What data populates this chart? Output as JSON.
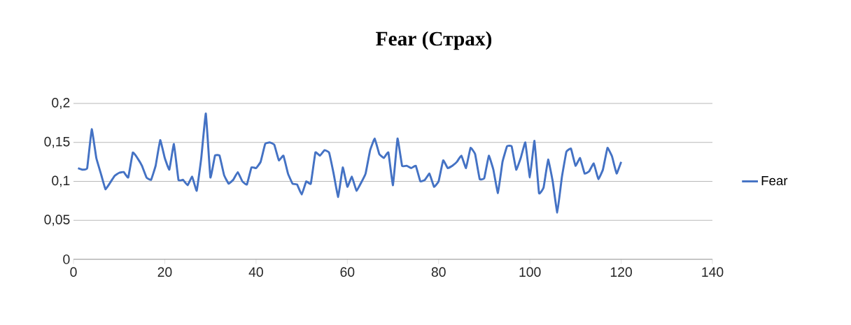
{
  "chart_data": {
    "type": "line",
    "title": "**Fear (Страх)**",
    "x": [
      1,
      2,
      3,
      4,
      5,
      6,
      7,
      8,
      9,
      10,
      11,
      12,
      13,
      14,
      15,
      16,
      17,
      18,
      19,
      20,
      21,
      22,
      23,
      24,
      25,
      26,
      27,
      28,
      29,
      30,
      31,
      32,
      33,
      34,
      35,
      36,
      37,
      38,
      39,
      40,
      41,
      42,
      43,
      44,
      45,
      46,
      47,
      48,
      49,
      50,
      51,
      52,
      53,
      54,
      55,
      56,
      57,
      58,
      59,
      60,
      61,
      62,
      63,
      64,
      65,
      66,
      67,
      68,
      69,
      70,
      71,
      72,
      73,
      74,
      75,
      76,
      77,
      78,
      79,
      80,
      81,
      82,
      83,
      84,
      85,
      86,
      87,
      88,
      89,
      90,
      91,
      92,
      93,
      94,
      95,
      96,
      97,
      98,
      99,
      100,
      101,
      102,
      103,
      104,
      105,
      106,
      107,
      108,
      109,
      110,
      111,
      112,
      113,
      114,
      115,
      116,
      117,
      118,
      119,
      120
    ],
    "series": [
      {
        "name": "Fear",
        "color": "#4472c4",
        "values": [
          0.117,
          0.115,
          0.117,
          0.167,
          0.13,
          0.11,
          0.09,
          0.098,
          0.107,
          0.111,
          0.112,
          0.105,
          0.137,
          0.13,
          0.12,
          0.105,
          0.102,
          0.12,
          0.153,
          0.13,
          0.115,
          0.148,
          0.102,
          0.102,
          0.095,
          0.106,
          0.088,
          0.13,
          0.187,
          0.105,
          0.133,
          0.133,
          0.108,
          0.097,
          0.102,
          0.112,
          0.1,
          0.096,
          0.118,
          0.117,
          0.125,
          0.148,
          0.15,
          0.147,
          0.127,
          0.133,
          0.11,
          0.097,
          0.096,
          0.083,
          0.1,
          0.097,
          0.137,
          0.133,
          0.14,
          0.137,
          0.11,
          0.08,
          0.118,
          0.093,
          0.106,
          0.088,
          0.098,
          0.11,
          0.14,
          0.155,
          0.135,
          0.13,
          0.137,
          0.095,
          0.155,
          0.12,
          0.12,
          0.117,
          0.12,
          0.1,
          0.102,
          0.11,
          0.093,
          0.1,
          0.127,
          0.117,
          0.12,
          0.125,
          0.133,
          0.117,
          0.143,
          0.135,
          0.103,
          0.104,
          0.133,
          0.115,
          0.085,
          0.125,
          0.145,
          0.145,
          0.115,
          0.13,
          0.15,
          0.105,
          0.152,
          0.085,
          0.092,
          0.128,
          0.1,
          0.06,
          0.105,
          0.138,
          0.142,
          0.12,
          0.13,
          0.11,
          0.113,
          0.123,
          0.103,
          0.115,
          0.143,
          0.132,
          0.11,
          0.125
        ]
      }
    ],
    "xlim": [
      0,
      140
    ],
    "xticks": [
      0,
      20,
      40,
      60,
      80,
      100,
      120,
      140
    ],
    "ylim": [
      0,
      0.2
    ],
    "yticks": [
      {
        "value": 0,
        "label": "0"
      },
      {
        "value": 0.05,
        "label": "0,05"
      },
      {
        "value": 0.1,
        "label": "0,1"
      },
      {
        "value": 0.15,
        "label": "0,15"
      },
      {
        "value": 0.2,
        "label": "0,2"
      }
    ],
    "grid": "y",
    "legend": "right",
    "marker": "none",
    "line_style": "solid"
  }
}
